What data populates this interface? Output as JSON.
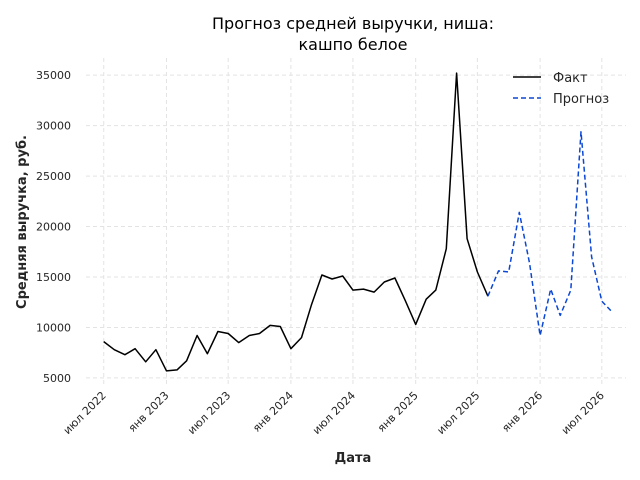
{
  "chart_data": {
    "type": "line",
    "title_lines": [
      "Прогноз средней выручки, ниша:",
      "кашпо белое"
    ],
    "xlabel": "Дата",
    "ylabel": "Средняя выручка, руб.",
    "ylim": [
      4200,
      36700
    ],
    "xlim": [
      "2022-05-10",
      "2026-09-10"
    ],
    "y_ticks": [
      5000,
      10000,
      15000,
      20000,
      25000,
      30000,
      35000
    ],
    "x_ticks": [
      {
        "date": "2022-07-01",
        "label": "июл 2022"
      },
      {
        "date": "2023-01-01",
        "label": "янв 2023"
      },
      {
        "date": "2023-07-01",
        "label": "июл 2023"
      },
      {
        "date": "2024-01-01",
        "label": "янв 2024"
      },
      {
        "date": "2024-07-01",
        "label": "июл 2024"
      },
      {
        "date": "2025-01-01",
        "label": "янв 2025"
      },
      {
        "date": "2025-07-01",
        "label": "июл 2025"
      },
      {
        "date": "2026-01-01",
        "label": "янв 2026"
      },
      {
        "date": "2026-07-01",
        "label": "июл 2026"
      }
    ],
    "grid": true,
    "legend_position": "top-right",
    "series": [
      {
        "name": "Факт",
        "color": "#000000",
        "style": "solid",
        "points": [
          [
            "2022-07-01",
            8600
          ],
          [
            "2022-08-01",
            7800
          ],
          [
            "2022-09-01",
            7300
          ],
          [
            "2022-10-01",
            7900
          ],
          [
            "2022-11-01",
            6600
          ],
          [
            "2022-12-01",
            7800
          ],
          [
            "2023-01-01",
            5700
          ],
          [
            "2023-02-01",
            5800
          ],
          [
            "2023-03-01",
            6700
          ],
          [
            "2023-04-01",
            9200
          ],
          [
            "2023-05-01",
            7400
          ],
          [
            "2023-06-01",
            9600
          ],
          [
            "2023-07-01",
            9400
          ],
          [
            "2023-08-01",
            8500
          ],
          [
            "2023-09-01",
            9200
          ],
          [
            "2023-10-01",
            9400
          ],
          [
            "2023-11-01",
            10200
          ],
          [
            "2023-12-01",
            10100
          ],
          [
            "2024-01-01",
            7900
          ],
          [
            "2024-02-01",
            9000
          ],
          [
            "2024-03-01",
            12200
          ],
          [
            "2024-04-01",
            15200
          ],
          [
            "2024-05-01",
            14800
          ],
          [
            "2024-06-01",
            15100
          ],
          [
            "2024-07-01",
            13700
          ],
          [
            "2024-08-01",
            13800
          ],
          [
            "2024-09-01",
            13500
          ],
          [
            "2024-10-01",
            14500
          ],
          [
            "2024-11-01",
            14900
          ],
          [
            "2024-12-01",
            12700
          ],
          [
            "2025-01-01",
            10300
          ],
          [
            "2025-02-01",
            12800
          ],
          [
            "2025-03-01",
            13700
          ],
          [
            "2025-04-01",
            17800
          ],
          [
            "2025-05-01",
            35200
          ],
          [
            "2025-06-01",
            18800
          ],
          [
            "2025-07-01",
            15500
          ],
          [
            "2025-08-01",
            13100
          ]
        ]
      },
      {
        "name": "Прогноз",
        "color": "#0b47d6",
        "style": "dashed",
        "points": [
          [
            "2025-08-01",
            13100
          ],
          [
            "2025-09-01",
            15600
          ],
          [
            "2025-10-01",
            15500
          ],
          [
            "2025-11-01",
            21400
          ],
          [
            "2025-12-01",
            16400
          ],
          [
            "2026-01-01",
            9200
          ],
          [
            "2026-02-01",
            13800
          ],
          [
            "2026-03-01",
            11200
          ],
          [
            "2026-04-01",
            13700
          ],
          [
            "2026-05-01",
            29400
          ],
          [
            "2026-06-01",
            17000
          ],
          [
            "2026-07-01",
            12600
          ],
          [
            "2026-08-01",
            11500
          ]
        ]
      }
    ]
  }
}
